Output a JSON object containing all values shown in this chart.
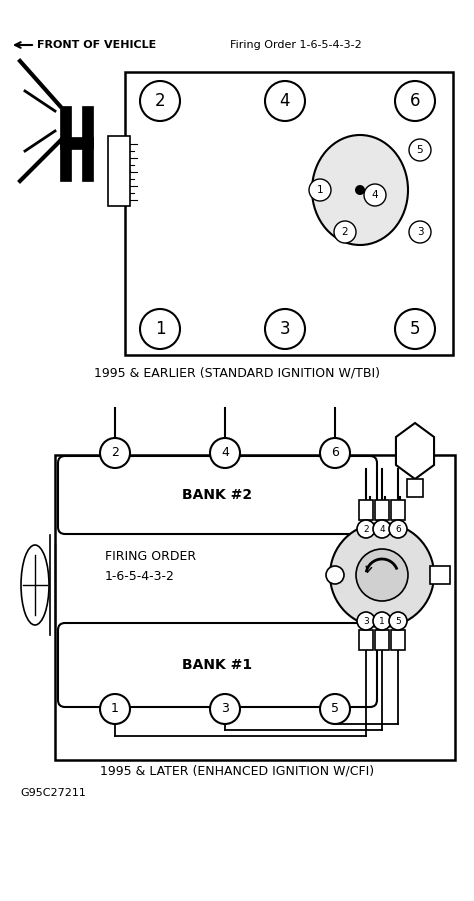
{
  "title_top": "FRONT OF VEHICLE",
  "firing_order_text": "Firing Order 1-6-5-4-3-2",
  "caption1": "1995 & EARLIER (STANDARD IGNITION W/TBI)",
  "caption2": "1995 & LATER (ENHANCED IGNITION W/CFI)",
  "footer": "G95C27211",
  "firing_order_label1": "FIRING ORDER",
  "firing_order_label2": "1-6-5-4-3-2",
  "bank1_label": "BANK #1",
  "bank2_label": "BANK #2",
  "line_color": "#000000",
  "text_color": "#000000"
}
